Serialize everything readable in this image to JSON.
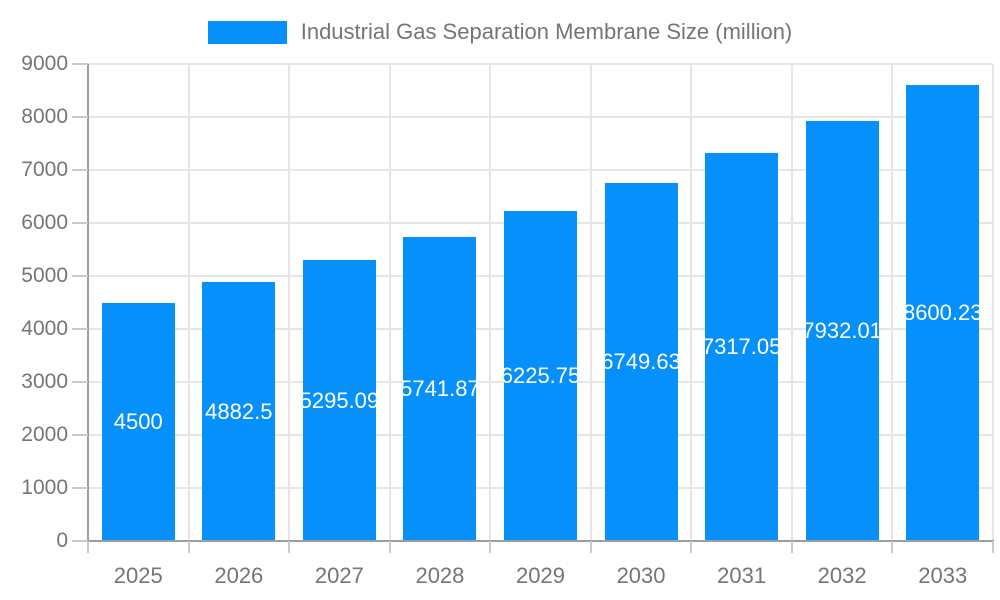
{
  "legend": {
    "label": "Industrial Gas Separation Membrane Size (million)"
  },
  "chart_data": {
    "type": "bar",
    "title": "Industrial Gas Separation Membrane Size (million)",
    "categories": [
      "2025",
      "2026",
      "2027",
      "2028",
      "2029",
      "2030",
      "2031",
      "2032",
      "2033"
    ],
    "values": [
      4500,
      4882.5,
      5295.09,
      5741.87,
      6225.75,
      6749.63,
      7317.05,
      7932.01,
      8600.23
    ],
    "value_labels": [
      "4500",
      "4882.5",
      "5295.09",
      "5741.87",
      "6225.75",
      "6749.63",
      "7317.05",
      "7932.01",
      "8600.23"
    ],
    "xlabel": "",
    "ylabel": "",
    "ylim": [
      0,
      9000
    ],
    "y_tick_step": 1000,
    "y_tick_labels": [
      "0",
      "1000",
      "2000",
      "3000",
      "4000",
      "5000",
      "6000",
      "7000",
      "8000",
      "9000"
    ],
    "grid": true,
    "legend_position": "top",
    "colors": {
      "bar": "#0590fb",
      "bar_value_label": "#ffffff",
      "axis_text": "#757575",
      "axis_line": "#9e9e9e",
      "gridline": "#e6e6e6",
      "tick_mark": "#c9c9c9",
      "background": "#ffffff"
    }
  }
}
